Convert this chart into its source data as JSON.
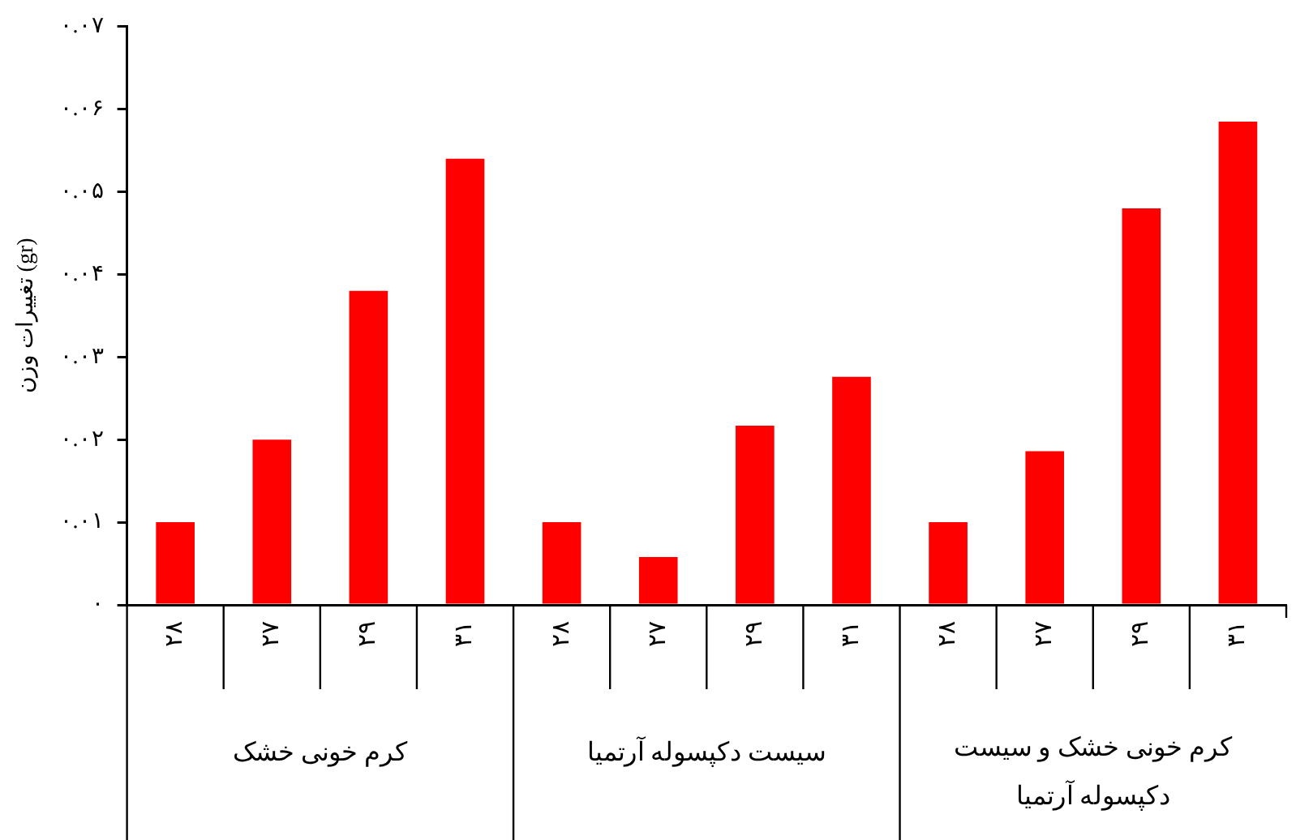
{
  "chart_data": {
    "type": "bar",
    "ylabel": "تغییرات وزن (gr)",
    "categories": [
      "۲۸",
      "۲۷",
      "۲۹",
      "۳۱",
      "۲۸",
      "۲۷",
      "۲۹",
      "۳۱",
      "۲۸",
      "۲۷",
      "۲۹",
      "۳۱"
    ],
    "values": [
      0.01,
      0.02,
      0.038,
      0.054,
      0.01,
      0.0058,
      0.0217,
      0.0276,
      0.01,
      0.0186,
      0.048,
      0.0585
    ],
    "color": "#ff0000",
    "annotations": [
      "کرم خونی خشک",
      "سیست دکپسوله آرتمیا",
      "کرم خونی خشک و سیست دکپسوله آرتمیا"
    ],
    "ylim": [
      0,
      0.07
    ],
    "yticks": [
      {
        "value": 0,
        "label": "۰"
      },
      {
        "value": 0.01,
        "label": "۰.۰۱"
      },
      {
        "value": 0.02,
        "label": "۰.۰۲"
      },
      {
        "value": 0.03,
        "label": "۰.۰۳"
      },
      {
        "value": 0.04,
        "label": "۰.۰۴"
      },
      {
        "value": 0.05,
        "label": "۰.۰۵"
      },
      {
        "value": 0.06,
        "label": "۰.۰۶"
      },
      {
        "value": 0.07,
        "label": "۰.۰۷"
      }
    ],
    "grid": false,
    "legend": false
  }
}
